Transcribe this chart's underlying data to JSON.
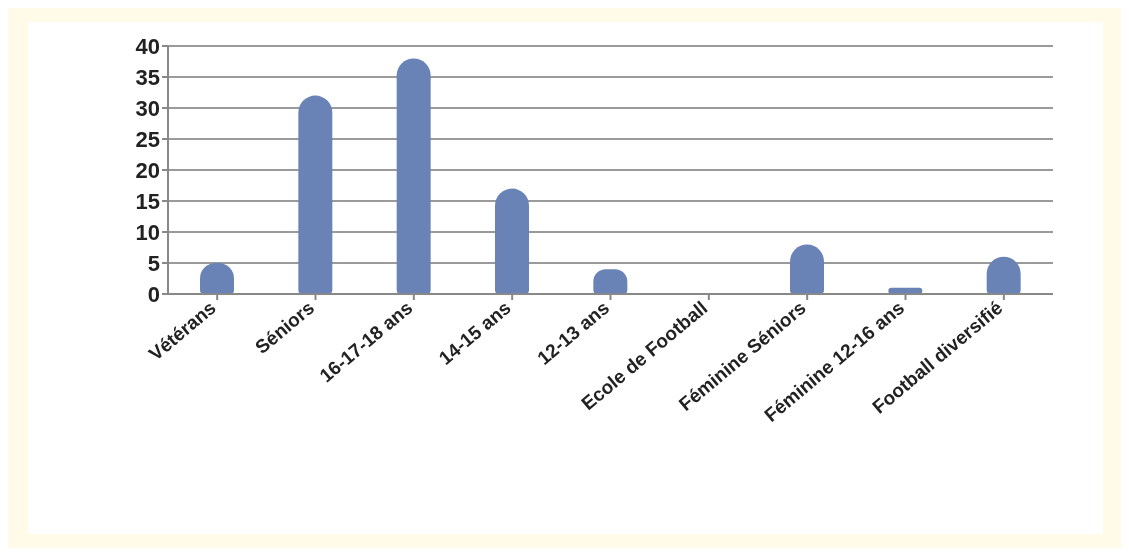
{
  "chart_data": {
    "type": "bar",
    "categories": [
      "Vétérans",
      "Séniors",
      "16-17-18 ans",
      "14-15 ans",
      "12-13 ans",
      "Ecole de Football",
      "Féminine Séniors",
      "Féminine 12-16 ans",
      "Football diversifié"
    ],
    "values": [
      5,
      32,
      38,
      17,
      4,
      0,
      8,
      1,
      6
    ],
    "color": "#6a83b6",
    "ylim": [
      0,
      40
    ],
    "yticks": [
      0,
      5,
      10,
      15,
      20,
      25,
      30,
      35,
      40
    ],
    "grid": "y"
  }
}
